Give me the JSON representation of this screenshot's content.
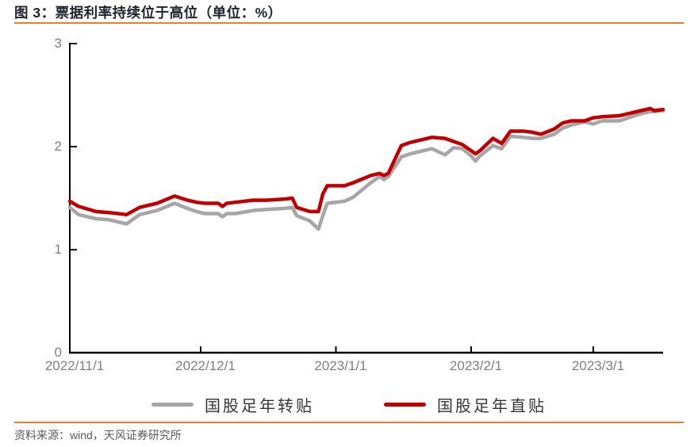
{
  "header": {
    "title": "图 3：票据利率持续位于高位（单位：%）"
  },
  "footer": {
    "source": "资料来源：wind，天风证券研究所"
  },
  "theme": {
    "accent_color": "#ED7D31",
    "axis_color": "#000000",
    "tick_label_color": "#7f7f7f",
    "background": "#ffffff"
  },
  "chart_data": {
    "type": "line",
    "title": "票据利率持续位于高位",
    "unit": "%",
    "ylim": [
      0,
      3
    ],
    "grid": false,
    "legend_position": "bottom",
    "x_range": [
      "2022-11-01",
      "2023-03-17"
    ],
    "y_ticks": [
      {
        "label": "3",
        "value": 3
      },
      {
        "label": "2",
        "value": 2
      },
      {
        "label": "1",
        "value": 1
      },
      {
        "label": "0",
        "value": 0
      }
    ],
    "x_ticks": [
      {
        "label": "2022/11/1",
        "date": "2022-11-01"
      },
      {
        "label": "2022/12/1",
        "date": "2022-12-01"
      },
      {
        "label": "2023/1/1",
        "date": "2023-01-01"
      },
      {
        "label": "2023/2/1",
        "date": "2023-02-01"
      },
      {
        "label": "2023/3/1",
        "date": "2023-03-01"
      }
    ],
    "series": [
      {
        "name": "国股足年转贴",
        "color": "#A6A6A6",
        "points": [
          {
            "date": "2022-11-01",
            "value": 1.41
          },
          {
            "date": "2022-11-03",
            "value": 1.34
          },
          {
            "date": "2022-11-07",
            "value": 1.3
          },
          {
            "date": "2022-11-10",
            "value": 1.29
          },
          {
            "date": "2022-11-14",
            "value": 1.25
          },
          {
            "date": "2022-11-17",
            "value": 1.34
          },
          {
            "date": "2022-11-21",
            "value": 1.38
          },
          {
            "date": "2022-11-25",
            "value": 1.45
          },
          {
            "date": "2022-11-28",
            "value": 1.4
          },
          {
            "date": "2022-11-30",
            "value": 1.37
          },
          {
            "date": "2022-12-02",
            "value": 1.35
          },
          {
            "date": "2022-12-05",
            "value": 1.35
          },
          {
            "date": "2022-12-06",
            "value": 1.32
          },
          {
            "date": "2022-12-07",
            "value": 1.35
          },
          {
            "date": "2022-12-09",
            "value": 1.35
          },
          {
            "date": "2022-12-13",
            "value": 1.38
          },
          {
            "date": "2022-12-16",
            "value": 1.39
          },
          {
            "date": "2022-12-20",
            "value": 1.4
          },
          {
            "date": "2022-12-22",
            "value": 1.41
          },
          {
            "date": "2022-12-23",
            "value": 1.33
          },
          {
            "date": "2022-12-26",
            "value": 1.28
          },
          {
            "date": "2022-12-28",
            "value": 1.2
          },
          {
            "date": "2022-12-29",
            "value": 1.33
          },
          {
            "date": "2022-12-30",
            "value": 1.45
          },
          {
            "date": "2023-01-03",
            "value": 1.47
          },
          {
            "date": "2023-01-05",
            "value": 1.51
          },
          {
            "date": "2023-01-09",
            "value": 1.65
          },
          {
            "date": "2023-01-11",
            "value": 1.71
          },
          {
            "date": "2023-01-12",
            "value": 1.68
          },
          {
            "date": "2023-01-13",
            "value": 1.71
          },
          {
            "date": "2023-01-16",
            "value": 1.9
          },
          {
            "date": "2023-01-18",
            "value": 1.93
          },
          {
            "date": "2023-01-20",
            "value": 1.95
          },
          {
            "date": "2023-01-23",
            "value": 1.98
          },
          {
            "date": "2023-01-26",
            "value": 1.92
          },
          {
            "date": "2023-01-28",
            "value": 1.99
          },
          {
            "date": "2023-01-30",
            "value": 1.98
          },
          {
            "date": "2023-02-01",
            "value": 1.91
          },
          {
            "date": "2023-02-02",
            "value": 1.86
          },
          {
            "date": "2023-02-03",
            "value": 1.91
          },
          {
            "date": "2023-02-06",
            "value": 2.01
          },
          {
            "date": "2023-02-08",
            "value": 1.98
          },
          {
            "date": "2023-02-10",
            "value": 2.1
          },
          {
            "date": "2023-02-13",
            "value": 2.09
          },
          {
            "date": "2023-02-15",
            "value": 2.08
          },
          {
            "date": "2023-02-17",
            "value": 2.08
          },
          {
            "date": "2023-02-20",
            "value": 2.12
          },
          {
            "date": "2023-02-22",
            "value": 2.18
          },
          {
            "date": "2023-02-24",
            "value": 2.21
          },
          {
            "date": "2023-02-27",
            "value": 2.24
          },
          {
            "date": "2023-03-01",
            "value": 2.22
          },
          {
            "date": "2023-03-03",
            "value": 2.25
          },
          {
            "date": "2023-03-07",
            "value": 2.25
          },
          {
            "date": "2023-03-09",
            "value": 2.28
          },
          {
            "date": "2023-03-12",
            "value": 2.32
          },
          {
            "date": "2023-03-14",
            "value": 2.34
          },
          {
            "date": "2023-03-15",
            "value": 2.34
          },
          {
            "date": "2023-03-17",
            "value": 2.35
          }
        ]
      },
      {
        "name": "国股足年直贴",
        "color": "#C00000",
        "points": [
          {
            "date": "2022-11-01",
            "value": 1.47
          },
          {
            "date": "2022-11-03",
            "value": 1.42
          },
          {
            "date": "2022-11-07",
            "value": 1.37
          },
          {
            "date": "2022-11-10",
            "value": 1.36
          },
          {
            "date": "2022-11-14",
            "value": 1.34
          },
          {
            "date": "2022-11-17",
            "value": 1.41
          },
          {
            "date": "2022-11-21",
            "value": 1.45
          },
          {
            "date": "2022-11-25",
            "value": 1.52
          },
          {
            "date": "2022-11-28",
            "value": 1.48
          },
          {
            "date": "2022-11-30",
            "value": 1.46
          },
          {
            "date": "2022-12-02",
            "value": 1.45
          },
          {
            "date": "2022-12-05",
            "value": 1.45
          },
          {
            "date": "2022-12-06",
            "value": 1.42
          },
          {
            "date": "2022-12-07",
            "value": 1.45
          },
          {
            "date": "2022-12-09",
            "value": 1.46
          },
          {
            "date": "2022-12-13",
            "value": 1.48
          },
          {
            "date": "2022-12-16",
            "value": 1.48
          },
          {
            "date": "2022-12-20",
            "value": 1.49
          },
          {
            "date": "2022-12-22",
            "value": 1.5
          },
          {
            "date": "2022-12-23",
            "value": 1.41
          },
          {
            "date": "2022-12-26",
            "value": 1.37
          },
          {
            "date": "2022-12-28",
            "value": 1.37
          },
          {
            "date": "2022-12-29",
            "value": 1.54
          },
          {
            "date": "2022-12-30",
            "value": 1.62
          },
          {
            "date": "2023-01-03",
            "value": 1.62
          },
          {
            "date": "2023-01-05",
            "value": 1.65
          },
          {
            "date": "2023-01-09",
            "value": 1.72
          },
          {
            "date": "2023-01-11",
            "value": 1.74
          },
          {
            "date": "2023-01-12",
            "value": 1.72
          },
          {
            "date": "2023-01-13",
            "value": 1.74
          },
          {
            "date": "2023-01-16",
            "value": 2.01
          },
          {
            "date": "2023-01-18",
            "value": 2.04
          },
          {
            "date": "2023-01-20",
            "value": 2.06
          },
          {
            "date": "2023-01-23",
            "value": 2.09
          },
          {
            "date": "2023-01-26",
            "value": 2.08
          },
          {
            "date": "2023-01-28",
            "value": 2.05
          },
          {
            "date": "2023-01-30",
            "value": 2.02
          },
          {
            "date": "2023-02-01",
            "value": 1.96
          },
          {
            "date": "2023-02-02",
            "value": 1.93
          },
          {
            "date": "2023-02-03",
            "value": 1.96
          },
          {
            "date": "2023-02-06",
            "value": 2.08
          },
          {
            "date": "2023-02-08",
            "value": 2.03
          },
          {
            "date": "2023-02-10",
            "value": 2.15
          },
          {
            "date": "2023-02-13",
            "value": 2.15
          },
          {
            "date": "2023-02-15",
            "value": 2.14
          },
          {
            "date": "2023-02-17",
            "value": 2.12
          },
          {
            "date": "2023-02-20",
            "value": 2.17
          },
          {
            "date": "2023-02-22",
            "value": 2.23
          },
          {
            "date": "2023-02-24",
            "value": 2.25
          },
          {
            "date": "2023-02-27",
            "value": 2.25
          },
          {
            "date": "2023-03-01",
            "value": 2.28
          },
          {
            "date": "2023-03-03",
            "value": 2.29
          },
          {
            "date": "2023-03-07",
            "value": 2.3
          },
          {
            "date": "2023-03-09",
            "value": 2.32
          },
          {
            "date": "2023-03-12",
            "value": 2.35
          },
          {
            "date": "2023-03-14",
            "value": 2.37
          },
          {
            "date": "2023-03-15",
            "value": 2.35
          },
          {
            "date": "2023-03-17",
            "value": 2.36
          }
        ]
      }
    ]
  }
}
